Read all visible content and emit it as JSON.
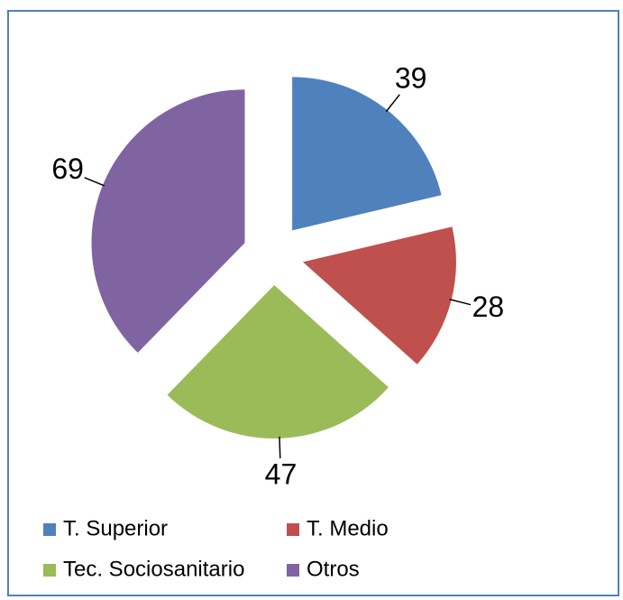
{
  "chart_data": {
    "type": "pie",
    "categories": [
      "T. Superior",
      "T. Medio",
      "Tec. Sociosanitario",
      "Otros"
    ],
    "values": [
      39,
      28,
      47,
      69
    ],
    "colors": [
      "#4f81bd",
      "#c0504d",
      "#9bbb59",
      "#8064a2"
    ],
    "exploded": true,
    "legend": "bottom"
  }
}
